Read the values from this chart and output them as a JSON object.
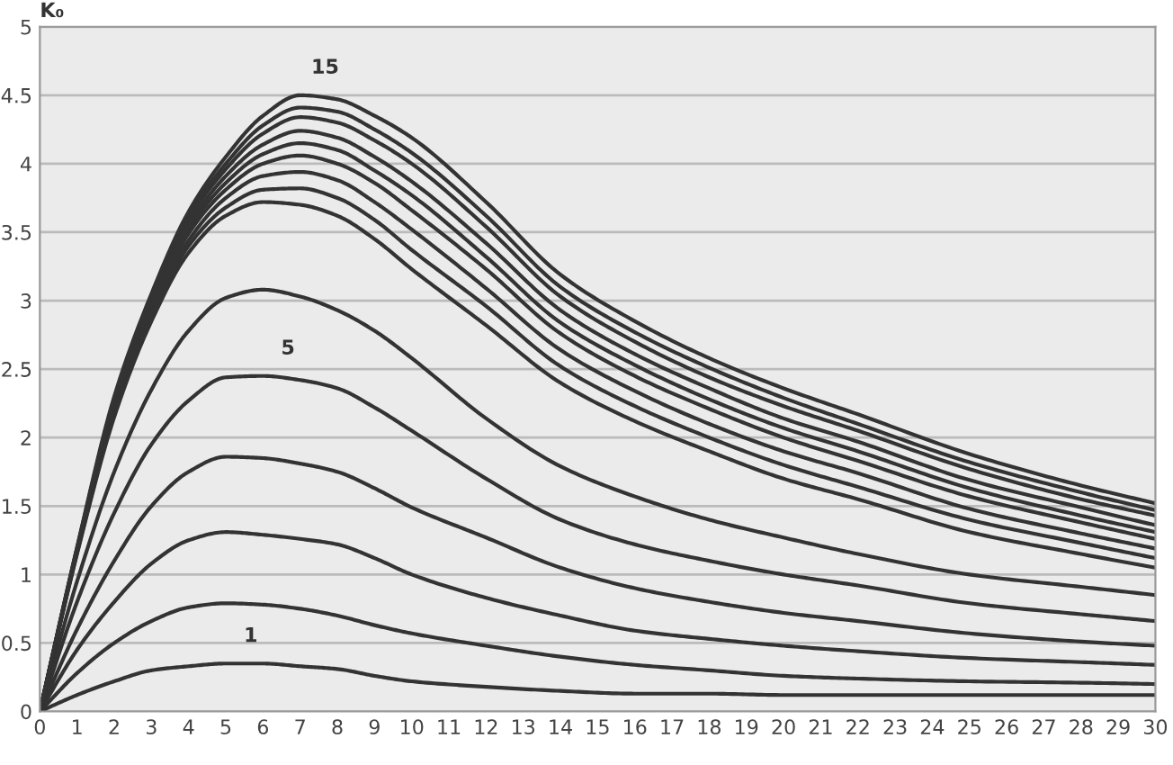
{
  "chart_data": {
    "type": "line",
    "ylabel": "K₀",
    "x": [
      0,
      1,
      2,
      3,
      4,
      5,
      6,
      7,
      8,
      9,
      10,
      12,
      14,
      16,
      18,
      20,
      22,
      25,
      28,
      30
    ],
    "series": [
      {
        "name": "1",
        "color": "#333333",
        "values": [
          0,
          0.12,
          0.22,
          0.3,
          0.33,
          0.35,
          0.35,
          0.33,
          0.31,
          0.26,
          0.22,
          0.18,
          0.15,
          0.13,
          0.13,
          0.12,
          0.12,
          0.12,
          0.12,
          0.12
        ]
      },
      {
        "color": "#333333",
        "values": [
          0,
          0.28,
          0.5,
          0.66,
          0.76,
          0.79,
          0.78,
          0.75,
          0.7,
          0.63,
          0.57,
          0.48,
          0.4,
          0.34,
          0.3,
          0.26,
          0.24,
          0.22,
          0.21,
          0.2
        ]
      },
      {
        "color": "#333333",
        "values": [
          0,
          0.45,
          0.8,
          1.08,
          1.25,
          1.31,
          1.29,
          1.26,
          1.22,
          1.12,
          1.0,
          0.83,
          0.7,
          0.59,
          0.53,
          0.48,
          0.44,
          0.39,
          0.36,
          0.34
        ]
      },
      {
        "color": "#333333",
        "values": [
          0,
          0.6,
          1.1,
          1.5,
          1.75,
          1.86,
          1.85,
          1.81,
          1.75,
          1.63,
          1.49,
          1.27,
          1.05,
          0.9,
          0.8,
          0.72,
          0.66,
          0.57,
          0.51,
          0.48
        ]
      },
      {
        "name": "5",
        "color": "#333333",
        "values": [
          0,
          0.8,
          1.45,
          1.95,
          2.27,
          2.44,
          2.45,
          2.42,
          2.36,
          2.22,
          2.05,
          1.7,
          1.4,
          1.22,
          1.1,
          1.0,
          0.92,
          0.79,
          0.71,
          0.66
        ]
      },
      {
        "color": "#333333",
        "values": [
          0,
          0.95,
          1.75,
          2.35,
          2.78,
          3.02,
          3.08,
          3.03,
          2.93,
          2.78,
          2.58,
          2.14,
          1.79,
          1.57,
          1.4,
          1.27,
          1.15,
          1.0,
          0.91,
          0.85
        ]
      },
      {
        "color": "#333333",
        "values": [
          0,
          1.15,
          2.15,
          2.85,
          3.35,
          3.62,
          3.72,
          3.7,
          3.62,
          3.45,
          3.23,
          2.82,
          2.4,
          2.12,
          1.9,
          1.7,
          1.55,
          1.31,
          1.15,
          1.05
        ]
      },
      {
        "color": "#333333",
        "values": [
          0,
          1.16,
          2.17,
          2.88,
          3.4,
          3.68,
          3.81,
          3.82,
          3.75,
          3.59,
          3.37,
          2.96,
          2.52,
          2.23,
          2.0,
          1.8,
          1.64,
          1.4,
          1.23,
          1.12
        ]
      },
      {
        "color": "#333333",
        "values": [
          0,
          1.17,
          2.2,
          2.91,
          3.44,
          3.75,
          3.91,
          3.94,
          3.88,
          3.72,
          3.52,
          3.09,
          2.64,
          2.34,
          2.1,
          1.9,
          1.74,
          1.48,
          1.3,
          1.19
        ]
      },
      {
        "color": "#333333",
        "values": [
          0,
          1.17,
          2.22,
          2.94,
          3.49,
          3.81,
          4.0,
          4.06,
          4.0,
          3.86,
          3.66,
          3.23,
          2.76,
          2.45,
          2.21,
          2.0,
          1.83,
          1.57,
          1.38,
          1.26
        ]
      },
      {
        "color": "#333333",
        "values": [
          0,
          1.18,
          2.23,
          2.96,
          3.52,
          3.86,
          4.07,
          4.15,
          4.1,
          3.95,
          3.77,
          3.32,
          2.84,
          2.53,
          2.28,
          2.07,
          1.9,
          1.63,
          1.43,
          1.31
        ]
      },
      {
        "color": "#333333",
        "values": [
          0,
          1.18,
          2.25,
          2.98,
          3.55,
          3.91,
          4.14,
          4.24,
          4.19,
          4.05,
          3.87,
          3.42,
          2.93,
          2.61,
          2.36,
          2.14,
          1.97,
          1.69,
          1.49,
          1.36
        ]
      },
      {
        "color": "#333333",
        "values": [
          0,
          1.19,
          2.27,
          3.01,
          3.59,
          3.96,
          4.22,
          4.34,
          4.3,
          4.17,
          4.0,
          3.54,
          3.03,
          2.7,
          2.44,
          2.23,
          2.05,
          1.77,
          1.55,
          1.43
        ]
      },
      {
        "color": "#333333",
        "values": [
          0,
          1.19,
          2.28,
          3.03,
          3.62,
          4.0,
          4.28,
          4.41,
          4.38,
          4.25,
          4.08,
          3.62,
          3.1,
          2.77,
          2.51,
          2.29,
          2.1,
          1.82,
          1.6,
          1.47
        ]
      },
      {
        "name": "15",
        "color": "#333333",
        "values": [
          0,
          1.2,
          2.3,
          3.05,
          3.65,
          4.05,
          4.35,
          4.5,
          4.47,
          4.35,
          4.19,
          3.72,
          3.19,
          2.85,
          2.58,
          2.36,
          2.17,
          1.88,
          1.65,
          1.52
        ]
      }
    ],
    "xlim": [
      0,
      30
    ],
    "xticks": [
      0,
      1,
      2,
      3,
      4,
      5,
      6,
      7,
      8,
      9,
      10,
      11,
      12,
      13,
      14,
      15,
      16,
      17,
      18,
      19,
      20,
      21,
      22,
      23,
      24,
      25,
      26,
      27,
      28,
      29,
      30
    ],
    "ylim": [
      0,
      5
    ],
    "yticks": [
      0,
      0.5,
      1,
      1.5,
      2,
      2.5,
      3,
      3.5,
      4,
      4.5,
      5
    ],
    "grid": "y",
    "legend": false,
    "marker": "none",
    "line_style": "solid"
  }
}
